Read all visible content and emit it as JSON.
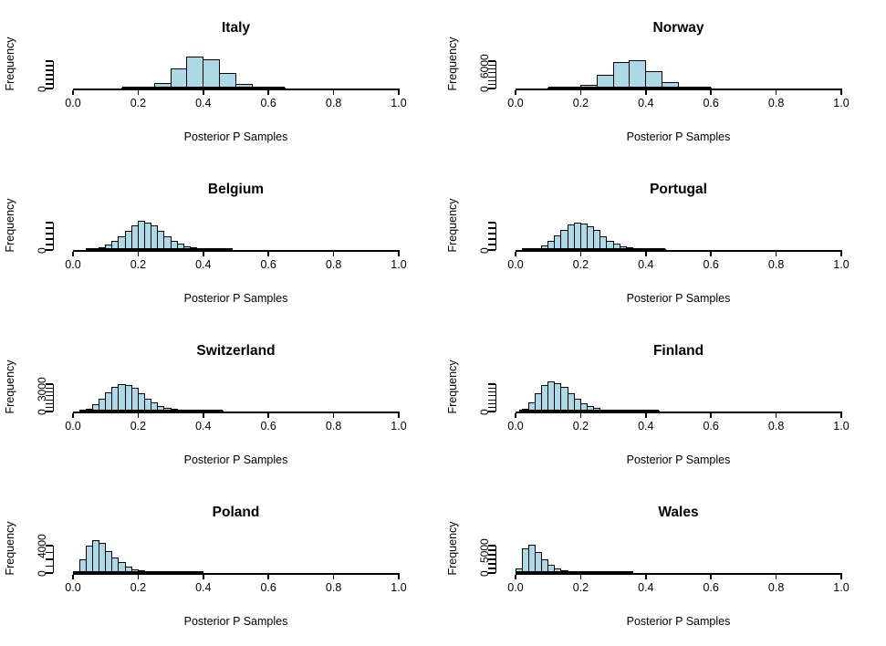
{
  "figure": {
    "kind": "histogram-grid",
    "rows": 4,
    "cols": 2,
    "background": "#FFFFFF",
    "shared_xlabel": "Posterior P Samples",
    "shared_ylabel": "Frequency",
    "shared_x_tick_labels": [
      "0.0",
      "0.2",
      "0.4",
      "0.6",
      "0.8",
      "1.0"
    ],
    "colors": {
      "bar_fill": "#ADD8E6",
      "bar_stroke": "#000000",
      "axis": "#000000",
      "text": "#000000"
    }
  },
  "chart_data": [
    {
      "type": "bar",
      "title": "Italy",
      "xlabel": "Posterior P Samples",
      "ylabel": "Frequency",
      "xlim": [
        0.0,
        1.0
      ],
      "x_ticks": [
        0.0,
        0.2,
        0.4,
        0.6,
        0.8,
        1.0
      ],
      "x_tick_labels": [
        "0.0",
        "0.2",
        "0.4",
        "0.6",
        "0.8",
        "1.0"
      ],
      "bin_start": 0.15,
      "bin_width": 0.05,
      "counts": [
        80,
        350,
        1250,
        4400,
        7000,
        6450,
        3500,
        1100,
        250,
        40
      ],
      "data_range": [
        0.15,
        0.65
      ],
      "y_axis": {
        "tick_max": 6000,
        "tick_step": 1000,
        "labeled": [
          "0"
        ]
      }
    },
    {
      "type": "bar",
      "title": "Norway",
      "xlabel": "Posterior P Samples",
      "ylabel": "Frequency",
      "xlim": [
        0.0,
        1.0
      ],
      "x_ticks": [
        0.0,
        0.2,
        0.4,
        0.6,
        0.8,
        1.0
      ],
      "x_tick_labels": [
        "0.0",
        "0.2",
        "0.4",
        "0.6",
        "0.8",
        "1.0"
      ],
      "bin_start": 0.1,
      "bin_width": 0.05,
      "counts": [
        60,
        300,
        900,
        3600,
        6700,
        7200,
        4500,
        1600,
        450,
        80
      ],
      "data_range": [
        0.1,
        0.6
      ],
      "y_axis": {
        "tick_max": 7000,
        "tick_step": 1000,
        "labeled": [
          "0",
          "6000"
        ]
      }
    },
    {
      "type": "bar",
      "title": "Belgium",
      "xlabel": "Posterior P Samples",
      "ylabel": "Frequency",
      "xlim": [
        0.0,
        1.0
      ],
      "x_ticks": [
        0.0,
        0.2,
        0.4,
        0.6,
        0.8,
        1.0
      ],
      "x_tick_labels": [
        "0.0",
        "0.2",
        "0.4",
        "0.6",
        "0.8",
        "1.0"
      ],
      "bin_start": 0.04,
      "bin_width": 0.02,
      "counts": [
        100,
        270,
        530,
        950,
        1600,
        2550,
        3450,
        4500,
        5300,
        5050,
        4500,
        3450,
        2550,
        1700,
        1150,
        700,
        420,
        260,
        150,
        90,
        50,
        25
      ],
      "data_range": [
        0.04,
        0.49
      ],
      "y_axis": {
        "tick_max": 5000,
        "tick_step": 1000,
        "labeled": [
          "0"
        ]
      }
    },
    {
      "type": "bar",
      "title": "Portugal",
      "xlabel": "Posterior P Samples",
      "ylabel": "Frequency",
      "xlim": [
        0.0,
        1.0
      ],
      "x_ticks": [
        0.0,
        0.2,
        0.4,
        0.6,
        0.8,
        1.0
      ],
      "x_tick_labels": [
        "0.0",
        "0.2",
        "0.4",
        "0.6",
        "0.8",
        "1.0"
      ],
      "bin_start": 0.02,
      "bin_width": 0.02,
      "counts": [
        60,
        160,
        400,
        900,
        1750,
        2750,
        3750,
        4600,
        5000,
        4850,
        4400,
        3600,
        2500,
        1750,
        1100,
        750,
        500,
        300,
        200,
        120,
        70,
        40
      ],
      "data_range": [
        0.02,
        0.46
      ],
      "y_axis": {
        "tick_max": 5000,
        "tick_step": 1000,
        "labeled": [
          "0"
        ]
      }
    },
    {
      "type": "bar",
      "title": "Switzerland",
      "xlabel": "Posterior P Samples",
      "ylabel": "Frequency",
      "xlim": [
        0.0,
        1.0
      ],
      "x_ticks": [
        0.0,
        0.2,
        0.4,
        0.6,
        0.8,
        1.0
      ],
      "x_tick_labels": [
        "0.0",
        "0.2",
        "0.4",
        "0.6",
        "0.8",
        "1.0"
      ],
      "bin_start": 0.02,
      "bin_width": 0.02,
      "counts": [
        140,
        350,
        880,
        1580,
        2450,
        3150,
        3500,
        3400,
        3000,
        2380,
        1680,
        1120,
        700,
        460,
        320,
        210,
        140,
        90,
        60,
        40,
        25,
        15
      ],
      "data_range": [
        0.02,
        0.46
      ],
      "y_axis": {
        "tick_max": 3500,
        "tick_step": 500,
        "labeled": [
          "0",
          "3000"
        ]
      }
    },
    {
      "type": "bar",
      "title": "Finland",
      "xlabel": "Posterior P Samples",
      "ylabel": "Frequency",
      "xlim": [
        0.0,
        1.0
      ],
      "x_ticks": [
        0.0,
        0.2,
        0.4,
        0.6,
        0.8,
        1.0
      ],
      "x_tick_labels": [
        "0.0",
        "0.2",
        "0.4",
        "0.6",
        "0.8",
        "1.0"
      ],
      "bin_start": 0.02,
      "bin_width": 0.02,
      "counts": [
        300,
        1150,
        2350,
        3400,
        3800,
        3600,
        3100,
        2280,
        1600,
        1050,
        680,
        450,
        270,
        160,
        100,
        60,
        40,
        25,
        15,
        10,
        6
      ],
      "data_range": [
        0.01,
        0.44
      ],
      "y_axis": {
        "tick_max": 3500,
        "tick_step": 500,
        "labeled": [
          "0"
        ]
      }
    },
    {
      "type": "bar",
      "title": "Poland",
      "xlabel": "Posterior P Samples",
      "ylabel": "Frequency",
      "xlim": [
        0.0,
        1.0
      ],
      "x_ticks": [
        0.0,
        0.2,
        0.4,
        0.6,
        0.8,
        1.0
      ],
      "x_tick_labels": [
        "0.0",
        "0.2",
        "0.4",
        "0.6",
        "0.8",
        "1.0"
      ],
      "bin_start": 0.0,
      "bin_width": 0.02,
      "counts": [
        150,
        2000,
        3950,
        4800,
        4400,
        3250,
        2300,
        1600,
        950,
        580,
        350,
        240,
        140,
        90,
        60,
        40,
        25,
        15,
        10,
        6
      ],
      "data_range": [
        0.0,
        0.4
      ],
      "y_axis": {
        "tick_max": 4000,
        "tick_step": 1000,
        "labeled": [
          "0",
          "4000"
        ]
      }
    },
    {
      "type": "bar",
      "title": "Wales",
      "xlabel": "Posterior P Samples",
      "ylabel": "Frequency",
      "xlim": [
        0.0,
        1.0
      ],
      "x_ticks": [
        0.0,
        0.2,
        0.4,
        0.6,
        0.8,
        1.0
      ],
      "x_tick_labels": [
        "0.0",
        "0.2",
        "0.4",
        "0.6",
        "0.8",
        "1.0"
      ],
      "bin_start": 0.0,
      "bin_width": 0.02,
      "counts": [
        1100,
        5450,
        6200,
        4650,
        3000,
        1850,
        1100,
        620,
        380,
        230,
        140,
        90,
        55,
        35,
        20,
        12,
        8,
        5
      ],
      "data_range": [
        0.0,
        0.36
      ],
      "y_axis": {
        "tick_max": 6000,
        "tick_step": 1000,
        "labeled": [
          "0",
          "5000"
        ]
      }
    }
  ]
}
